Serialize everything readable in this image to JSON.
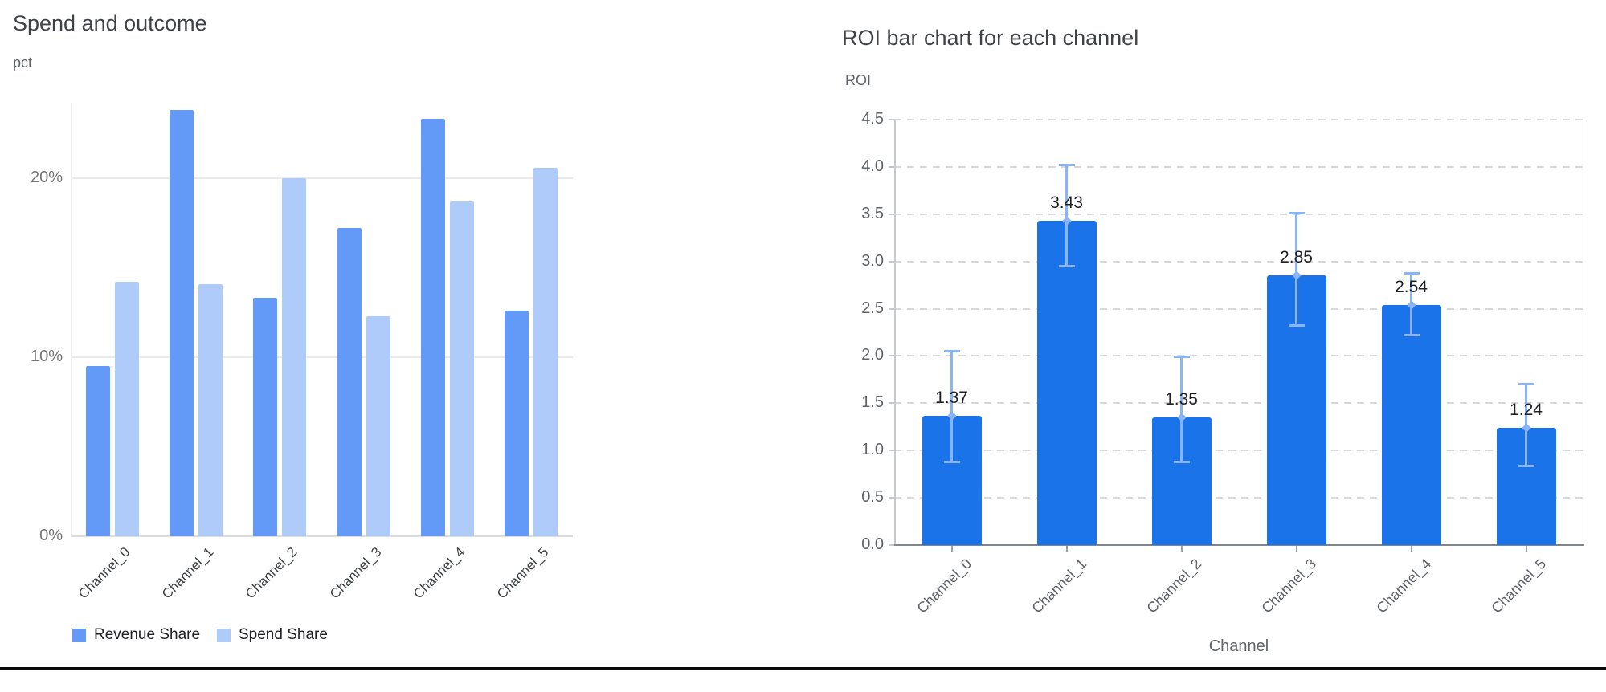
{
  "chart_data": [
    {
      "id": "spend-and-outcome",
      "type": "bar",
      "title": "Spend and outcome",
      "ylabel": "pct",
      "xlabel": "",
      "categories": [
        "Channel_0",
        "Channel_1",
        "Channel_2",
        "Channel_3",
        "Channel_4",
        "Channel_5"
      ],
      "series": [
        {
          "name": "Revenue Share",
          "color": "#639af7",
          "values": [
            9.5,
            23.8,
            13.3,
            17.2,
            23.3,
            12.6
          ]
        },
        {
          "name": "Spend Share",
          "color": "#aecbfa",
          "values": [
            14.2,
            14.1,
            20.0,
            12.3,
            18.7,
            20.6
          ]
        }
      ],
      "value_unit": "%",
      "y_ticks": [
        {
          "value": 0,
          "label": "0%"
        },
        {
          "value": 10,
          "label": "10%"
        },
        {
          "value": 20,
          "label": "20%"
        }
      ],
      "ylim": [
        0,
        24.2
      ],
      "grid": "solid-horizontal",
      "legend_position": "bottom"
    },
    {
      "id": "roi-by-channel",
      "type": "bar",
      "title": "ROI bar chart for each channel",
      "ylabel": "ROI",
      "xlabel": "Channel",
      "categories": [
        "Channel_0",
        "Channel_1",
        "Channel_2",
        "Channel_3",
        "Channel_4",
        "Channel_5"
      ],
      "values": [
        1.37,
        3.43,
        1.35,
        2.85,
        2.54,
        1.24
      ],
      "bar_labels": [
        "1.37",
        "3.43",
        "1.35",
        "2.85",
        "2.54",
        "1.24"
      ],
      "error_low": [
        0.88,
        2.95,
        0.88,
        2.32,
        2.22,
        0.84
      ],
      "error_high": [
        2.05,
        4.02,
        1.99,
        3.51,
        2.87,
        1.7
      ],
      "y_ticks": [
        {
          "value": 0,
          "label": "0.0"
        },
        {
          "value": 0.5,
          "label": "0.5"
        },
        {
          "value": 1,
          "label": "1.0"
        },
        {
          "value": 1.5,
          "label": "1.5"
        },
        {
          "value": 2,
          "label": "2.0"
        },
        {
          "value": 2.5,
          "label": "2.5"
        },
        {
          "value": 3,
          "label": "3.0"
        },
        {
          "value": 3.5,
          "label": "3.5"
        },
        {
          "value": 4,
          "label": "4.0"
        },
        {
          "value": 4.5,
          "label": "4.5"
        }
      ],
      "ylim": [
        0,
        4.5
      ],
      "grid": "dashed-horizontal",
      "bar_color": "#1a73e8",
      "error_bar_color": "#8ab4f8",
      "legend_position": "none"
    }
  ],
  "colors": {
    "background": "#ffffff",
    "title_text": "#3f4247",
    "axis_text": "#5f6368",
    "left_tick_text": "#757575",
    "left_category_text": "#3c4043",
    "value_label_text": "#202124",
    "legend_text": "#202124",
    "gridline": "#e9eaec",
    "baseline_left": "#dadce0",
    "dashed_gridline": "#d6d9dc",
    "axis_line": "#c6c9cc",
    "x_axis_line": "#80868b",
    "x_axis_tick": "#9aa0a6",
    "right_border": "#dadce0",
    "bottom_divider": "#0a0a0a"
  }
}
